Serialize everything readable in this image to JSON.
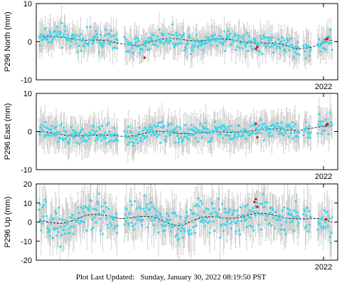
{
  "footer": {
    "label": "Plot Last Updated:",
    "timestamp": "Sunday, January 30, 2022 08:19:50 PST"
  },
  "colors": {
    "point": "#3ad7ea",
    "recent_point": "#e01010",
    "error_bar": "#c8c8c8",
    "model_line": "#000000",
    "frame": "#000000"
  },
  "chart_data": [
    {
      "type": "scatter",
      "ylabel": "P296 North (mm)",
      "ylim": [
        -10,
        10
      ],
      "yticks": [
        -10,
        0,
        10
      ],
      "xtick_labels": [
        "2022"
      ],
      "error_bar_half_width_mm": 3.2,
      "noise_mm": 1.3,
      "model_knots": {
        "x": [
          0,
          0.07,
          0.14,
          0.2,
          0.27,
          0.34,
          0.4,
          0.48,
          0.55,
          0.62,
          0.7,
          0.76,
          0.83,
          0.88,
          0.94,
          1.0
        ],
        "y": [
          1.2,
          1.0,
          0.8,
          0.4,
          -0.6,
          -0.7,
          0.3,
          0.7,
          0.5,
          0.4,
          0.2,
          -0.2,
          -1.0,
          -1.8,
          -1.0,
          0.2
        ]
      },
      "data_gaps": [
        [
          0.27,
          0.29
        ],
        [
          0.89,
          0.9
        ],
        [
          0.93,
          0.95
        ]
      ],
      "recent_points": [
        {
          "x": 0.74,
          "y": -1.9
        },
        {
          "x": 0.745,
          "y": -1.4
        },
        {
          "x": 0.98,
          "y": 0.6
        },
        {
          "x": 0.985,
          "y": 0.8
        },
        {
          "x": 0.36,
          "y": -4.2
        }
      ]
    },
    {
      "type": "scatter",
      "ylabel": "P296 East (mm)",
      "ylim": [
        -10,
        10
      ],
      "yticks": [
        -10,
        0,
        10
      ],
      "xtick_labels": [
        "2022"
      ],
      "error_bar_half_width_mm": 3.5,
      "noise_mm": 1.2,
      "model_knots": {
        "x": [
          0,
          0.1,
          0.2,
          0.3,
          0.4,
          0.5,
          0.6,
          0.7,
          0.8,
          0.88,
          0.94,
          1.0
        ],
        "y": [
          -0.3,
          -0.8,
          -1.2,
          -1.0,
          -0.2,
          -0.3,
          -0.4,
          0.2,
          0.5,
          0.6,
          0.9,
          1.2
        ]
      },
      "data_gaps": [
        [
          0.27,
          0.29
        ],
        [
          0.89,
          0.9
        ],
        [
          0.93,
          0.95
        ]
      ],
      "recent_points": [
        {
          "x": 0.74,
          "y": 2.0
        },
        {
          "x": 0.745,
          "y": -1.5
        },
        {
          "x": 0.98,
          "y": 1.6
        },
        {
          "x": 0.985,
          "y": 2.0
        }
      ]
    },
    {
      "type": "scatter",
      "ylabel": "P296 Up (mm)",
      "ylim": [
        -20,
        20
      ],
      "yticks": [
        -20,
        -10,
        0,
        10,
        20
      ],
      "xtick_labels": [
        "2022"
      ],
      "error_bar_half_width_mm": 9,
      "noise_mm": 4.5,
      "model_knots": {
        "x": [
          0,
          0.08,
          0.16,
          0.24,
          0.32,
          0.4,
          0.48,
          0.56,
          0.64,
          0.72,
          0.8,
          0.86,
          0.92,
          0.97,
          1.0
        ],
        "y": [
          -0.5,
          0.5,
          2.5,
          3.5,
          2.5,
          1.5,
          -1.0,
          1.5,
          3.0,
          3.5,
          3.5,
          3.0,
          1.0,
          0.5,
          0.0
        ]
      },
      "data_gaps": [
        [
          0.27,
          0.29
        ],
        [
          0.89,
          0.9
        ],
        [
          0.93,
          0.95
        ]
      ],
      "recent_points": [
        {
          "x": 0.735,
          "y": 10.5
        },
        {
          "x": 0.74,
          "y": 12.0
        },
        {
          "x": 0.745,
          "y": 8.0
        },
        {
          "x": 0.98,
          "y": 1.5
        }
      ]
    }
  ]
}
